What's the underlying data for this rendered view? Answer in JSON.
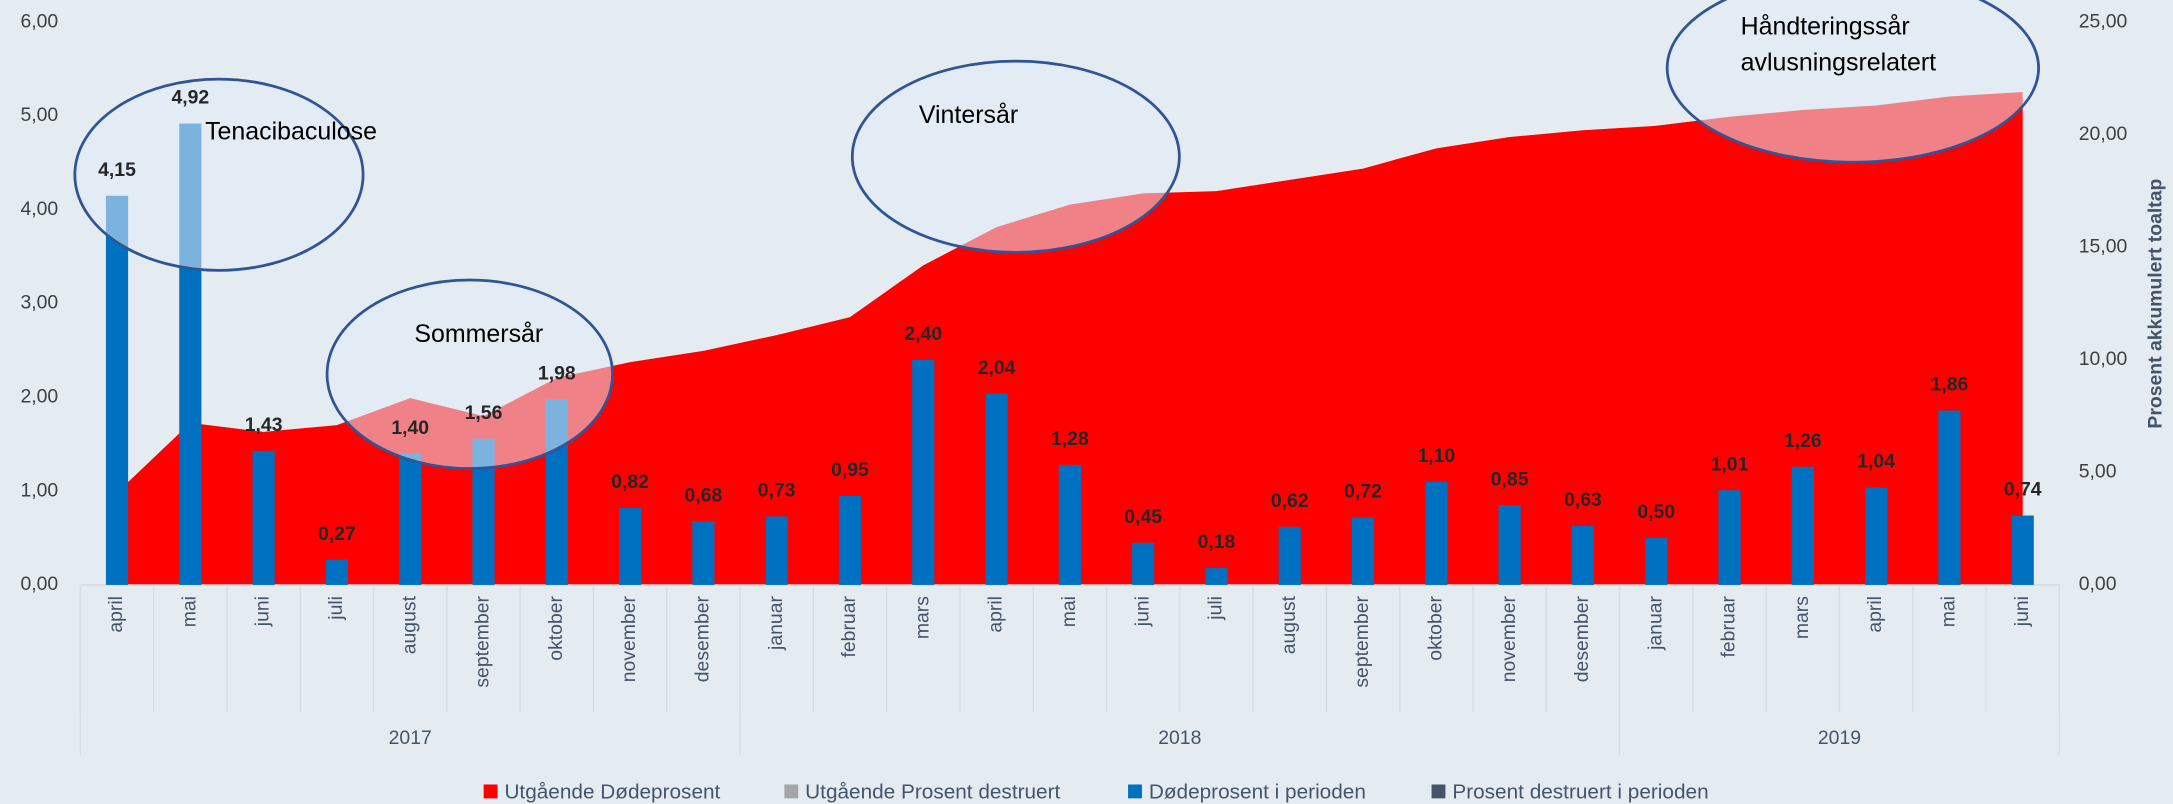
{
  "chart_data": {
    "type": "bar",
    "categories": [
      "april",
      "mai",
      "juni",
      "juli",
      "august",
      "september",
      "oktober",
      "november",
      "desember",
      "januar",
      "februar",
      "mars",
      "april",
      "mai",
      "juni",
      "juli",
      "august",
      "september",
      "oktober",
      "november",
      "desember",
      "januar",
      "februar",
      "mars",
      "april",
      "mai",
      "juni"
    ],
    "groups": [
      {
        "label": "2017",
        "count": 9
      },
      {
        "label": "2018",
        "count": 12
      },
      {
        "label": "2019",
        "count": 6
      }
    ],
    "series": [
      {
        "name": "Utgående Dødeprosent",
        "color": "#ff0000",
        "type": "area",
        "axis": "y2",
        "values": [
          4.1,
          7.2,
          6.8,
          7.1,
          8.3,
          7.5,
          9.2,
          9.9,
          10.4,
          11.1,
          11.9,
          14.2,
          15.9,
          16.9,
          17.4,
          17.5,
          18.0,
          18.5,
          19.4,
          19.9,
          20.2,
          20.4,
          20.8,
          21.1,
          21.3,
          21.7,
          21.9
        ]
      },
      {
        "name": "Utgående Prosent destruert",
        "color": "#a5a5a5",
        "type": "area",
        "axis": "y2",
        "values": [
          null,
          null,
          null,
          null,
          null,
          null,
          null,
          null,
          null,
          null,
          null,
          null,
          null,
          null,
          null,
          null,
          null,
          null,
          null,
          null,
          null,
          null,
          null,
          null,
          null,
          null,
          null
        ]
      },
      {
        "name": "Dødeprosent i perioden",
        "color": "#0070c0",
        "type": "bar",
        "values": [
          4.15,
          4.92,
          1.43,
          0.27,
          1.4,
          1.56,
          1.98,
          0.82,
          0.68,
          0.73,
          0.95,
          2.4,
          2.04,
          1.28,
          0.45,
          0.18,
          0.62,
          0.72,
          1.1,
          0.85,
          0.63,
          0.5,
          1.01,
          1.26,
          1.04,
          1.86,
          0.74
        ],
        "value_labels": [
          "4,15",
          "4,92",
          "1,43",
          "0,27",
          "1,40",
          "1,56",
          "1,98",
          "0,82",
          "0,68",
          "0,73",
          "0,95",
          "2,40",
          "2,04",
          "1,28",
          "0,45",
          "0,18",
          "0,62",
          "0,72",
          "1,10",
          "0,85",
          "0,63",
          "0,50",
          "1,01",
          "1,26",
          "1,04",
          "1,86",
          "0,74"
        ]
      },
      {
        "name": "Prosent destruert i perioden",
        "color": "#44546a",
        "type": "bar",
        "values": [
          null,
          null,
          null,
          null,
          null,
          null,
          null,
          null,
          null,
          null,
          null,
          null,
          null,
          null,
          null,
          null,
          null,
          null,
          null,
          null,
          null,
          null,
          null,
          null,
          null,
          null,
          null
        ]
      }
    ],
    "ylim": [
      0,
      6
    ],
    "yticks": [
      {
        "value": 0,
        "label": "0,00"
      },
      {
        "value": 1,
        "label": "1,00"
      },
      {
        "value": 2,
        "label": "2,00"
      },
      {
        "value": 3,
        "label": "3,00"
      },
      {
        "value": 4,
        "label": "4,00"
      },
      {
        "value": 5,
        "label": "5,00"
      },
      {
        "value": 6,
        "label": "6,00"
      }
    ],
    "y2lim": [
      0,
      25
    ],
    "y2ticks": [
      {
        "value": 0,
        "label": "0,00"
      },
      {
        "value": 5,
        "label": "5,00"
      },
      {
        "value": 10,
        "label": "10,00"
      },
      {
        "value": 15,
        "label": "15,00"
      },
      {
        "value": 20,
        "label": "20,00"
      },
      {
        "value": 25,
        "label": "25,00"
      }
    ],
    "y2label": "Prosent akkumulert toaltap",
    "annotations": [
      "Tenacibaculose",
      "Sommersår",
      "Vintersår",
      "Håndteringssår",
      "avlusningsrelatert"
    ],
    "legend": "bottom"
  }
}
